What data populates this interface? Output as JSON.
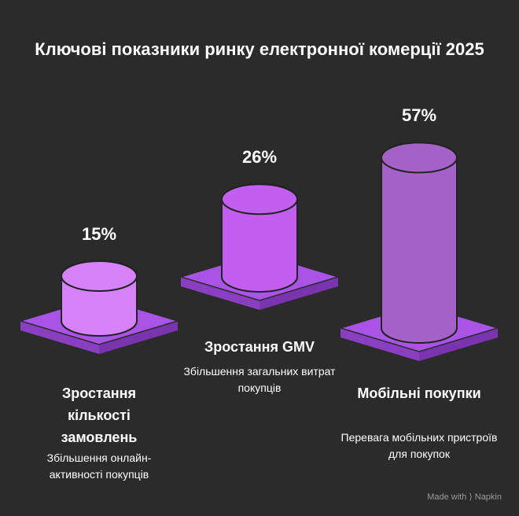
{
  "chart_data": {
    "type": "cylinder",
    "title": "Ключові показники ринку електронної комерції 2025",
    "categories": [
      "Зростання кількості замовлень",
      "Зростання GMV",
      "Мобільні покупки"
    ],
    "descriptions": [
      "Збільшення онлайн-активності покупців",
      "Збільшення загальних витрат покупців",
      "Перевага мобільних пристроїв для покупок"
    ],
    "values": [
      15,
      26,
      57
    ],
    "value_labels": [
      "15%",
      "26%",
      "57%"
    ],
    "colors": [
      "#d683fb",
      "#c15ff0",
      "#a462c9"
    ]
  },
  "footer": {
    "text": "Made with",
    "brand": "Napkin"
  }
}
